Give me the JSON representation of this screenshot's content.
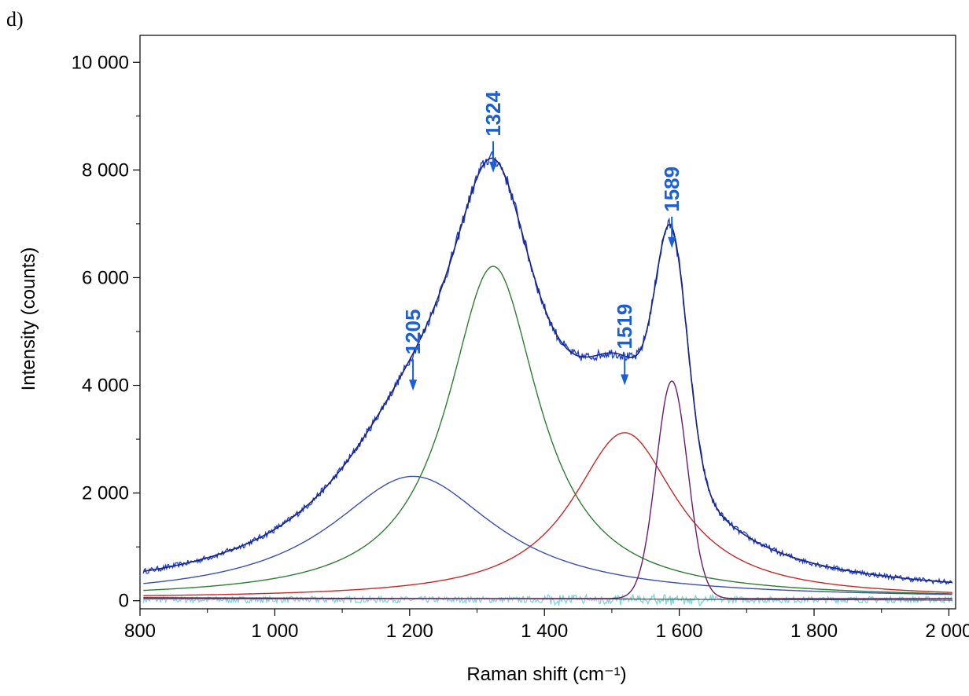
{
  "panel_label": "d)",
  "chart_data": {
    "type": "line",
    "title": "",
    "xlabel": "Raman shift (cm⁻¹)",
    "ylabel": "Intensity (counts)",
    "xlim": [
      800,
      2010
    ],
    "ylim": [
      -150,
      10500
    ],
    "xticks": [
      800,
      1000,
      1200,
      1400,
      1600,
      1800,
      2000
    ],
    "xtick_labels": [
      "800",
      "1 000",
      "1 200",
      "1 400",
      "1 600",
      "1 800",
      "2 000"
    ],
    "yticks": [
      0,
      2000,
      4000,
      6000,
      8000,
      10000
    ],
    "ytick_labels": [
      "0",
      "2 000",
      "4 000",
      "6 000",
      "8 000",
      "10 000"
    ],
    "grid": false,
    "components": [
      {
        "shape": "lorentzian",
        "center": 1205,
        "height": 2270,
        "fwhm": 300,
        "color": "#3a4fb0"
      },
      {
        "shape": "lorentzian",
        "center": 1324,
        "height": 6170,
        "fwhm": 165,
        "color": "#2e7d32"
      },
      {
        "shape": "lorentzian",
        "center": 1519,
        "height": 3080,
        "fwhm": 190,
        "color": "#c62828"
      },
      {
        "shape": "gaussian",
        "center": 1589,
        "height": 4040,
        "fwhm": 55,
        "color": "#6a1b6a"
      }
    ],
    "envelope": {
      "color": "#1a237e"
    },
    "measured": {
      "color": "#1d3fc8"
    },
    "residual": {
      "color": "#7fd8d8"
    },
    "annotations": [
      {
        "text": "1205",
        "x": 1205,
        "y": 3900
      },
      {
        "text": "1324",
        "x": 1324,
        "y": 7950
      },
      {
        "text": "1519",
        "x": 1519,
        "y": 4000
      },
      {
        "text": "1589",
        "x": 1589,
        "y": 6550
      }
    ],
    "annotation_color": "#1b5fd6"
  }
}
